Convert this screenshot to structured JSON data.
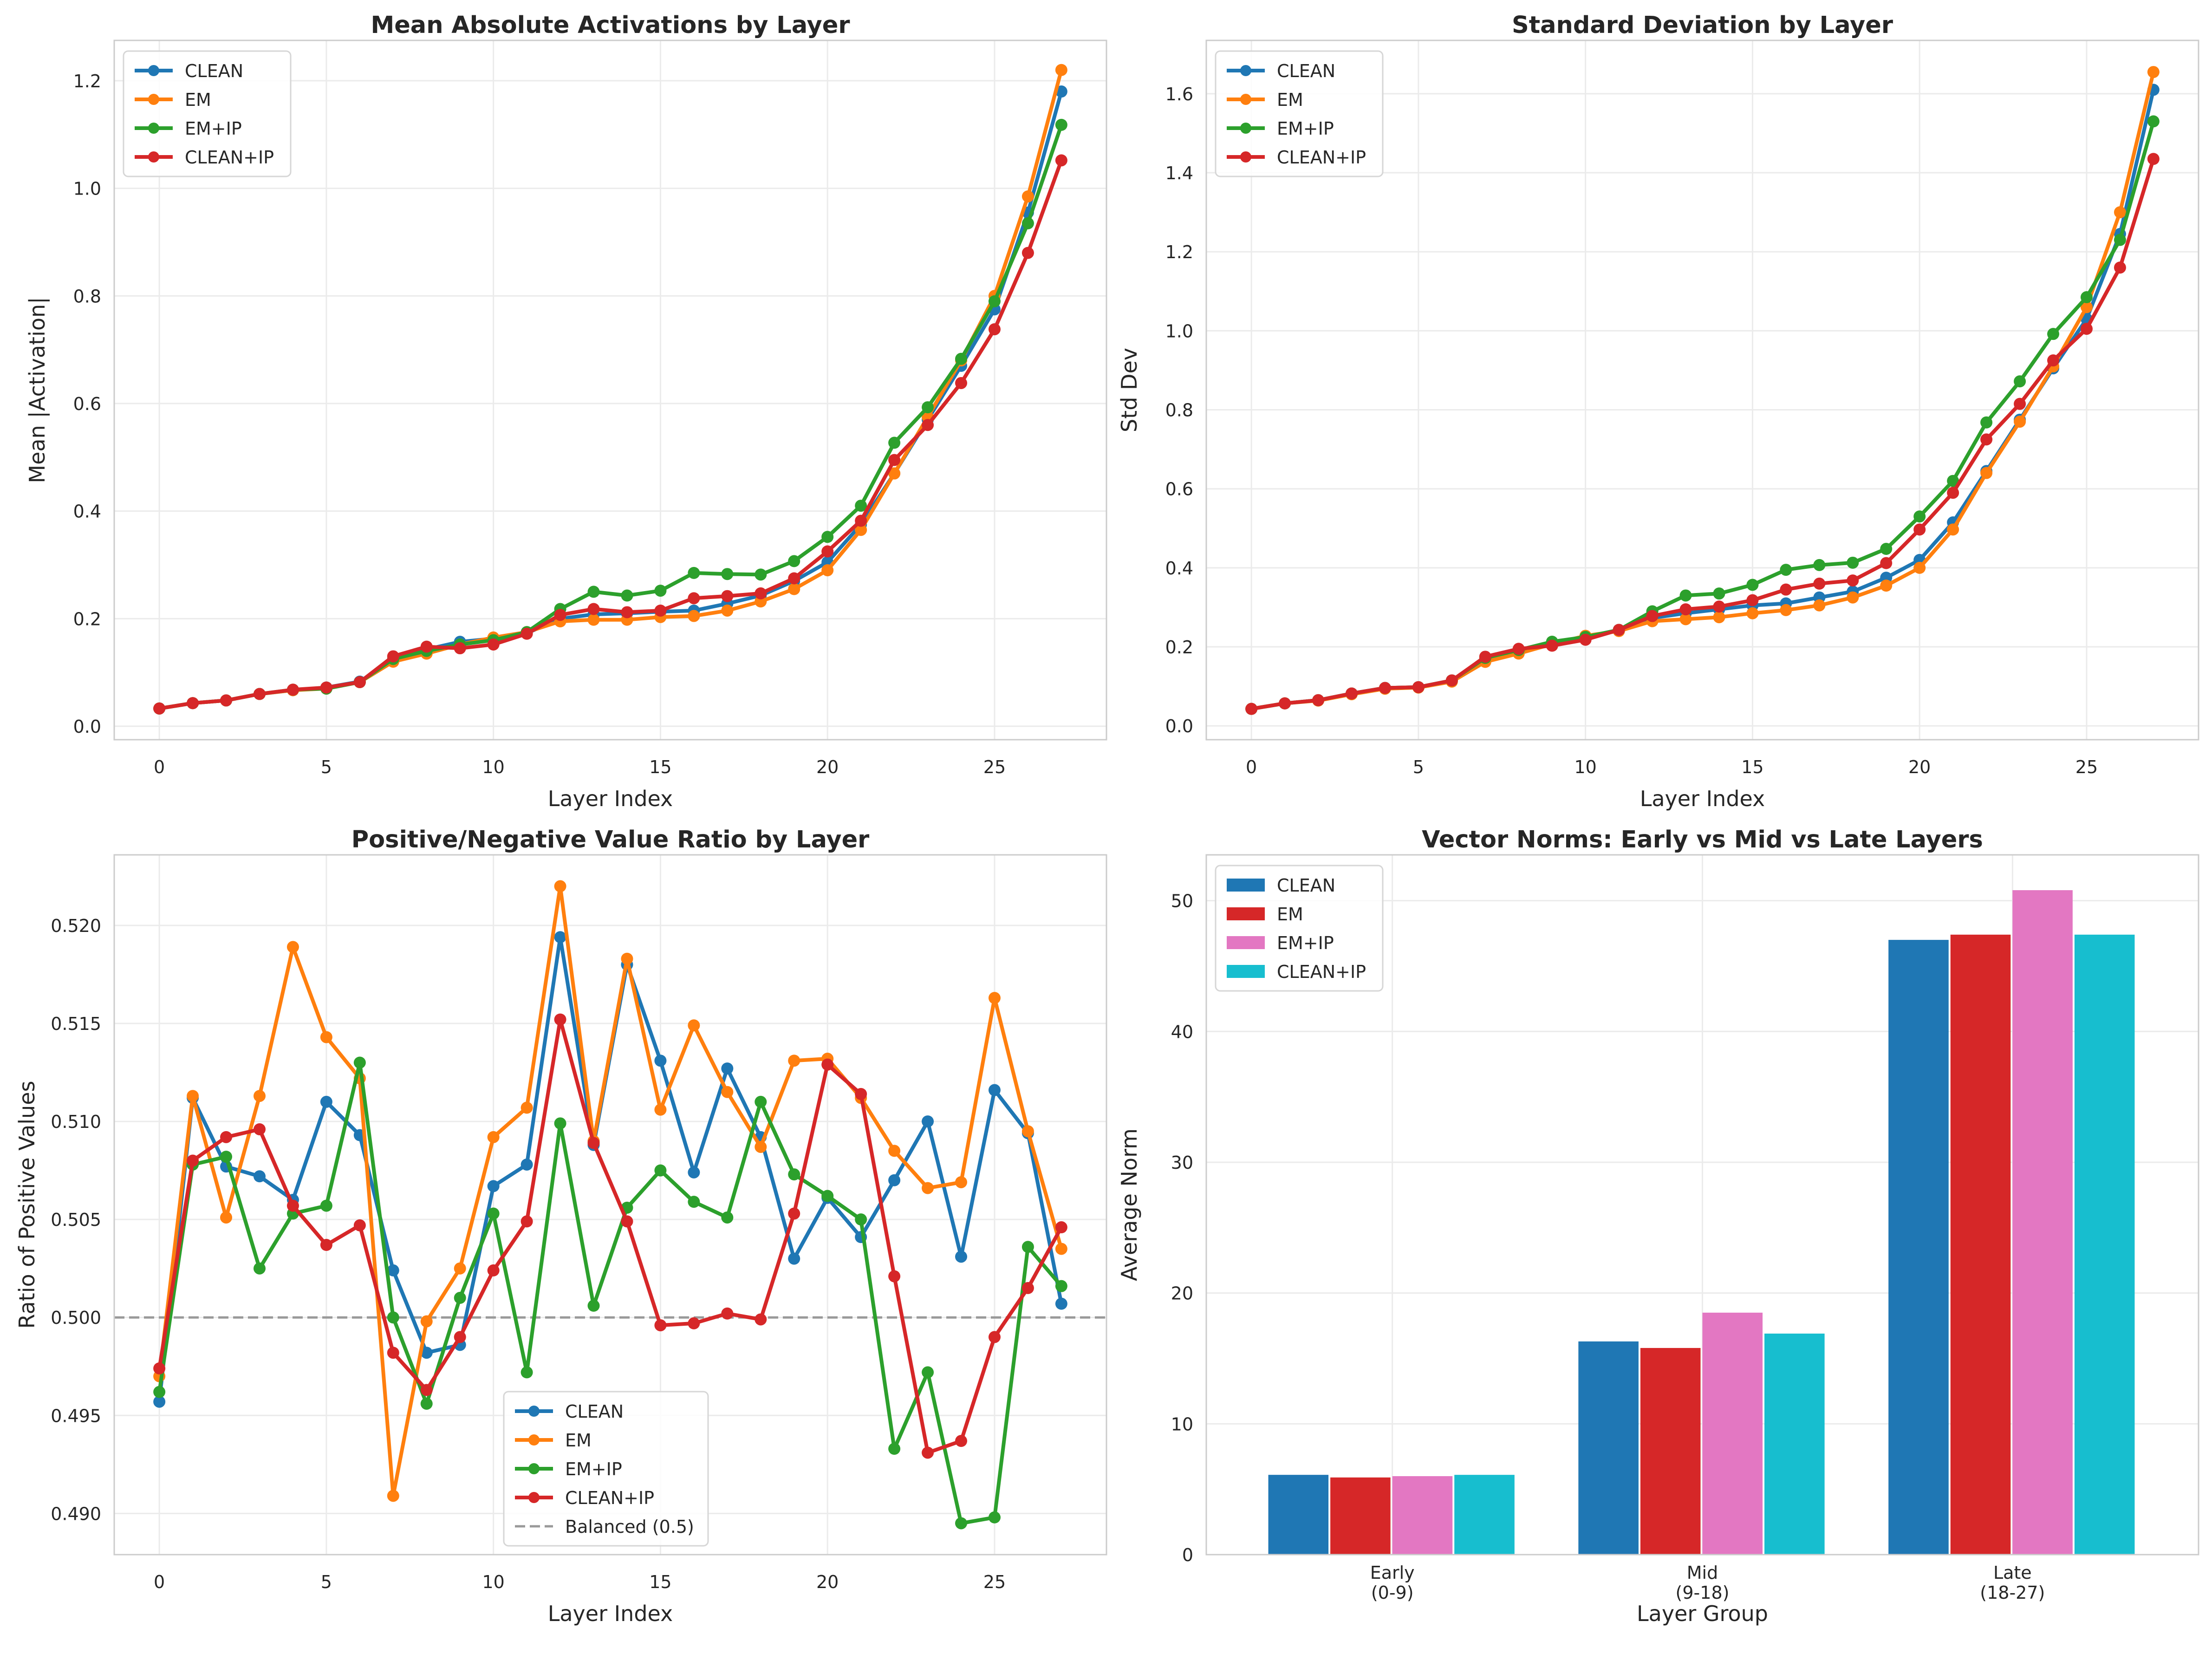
{
  "chart_data": [
    {
      "type": "line",
      "title": "Mean Absolute Activations by Layer",
      "xlabel": "Layer Index",
      "ylabel": "Mean |Activation|",
      "xlim": [
        -1.35,
        28.35
      ],
      "ylim": [
        -0.025,
        1.275
      ],
      "xticks": [
        0,
        5,
        10,
        15,
        20,
        25
      ],
      "yticks": [
        0.0,
        0.2,
        0.4,
        0.6,
        0.8,
        1.0,
        1.2
      ],
      "ytick_decimals": 1,
      "grid": true,
      "legend": "top-left",
      "x": [
        0,
        1,
        2,
        3,
        4,
        5,
        6,
        7,
        8,
        9,
        10,
        11,
        12,
        13,
        14,
        15,
        16,
        17,
        18,
        19,
        20,
        21,
        22,
        23,
        24,
        25,
        26,
        27
      ],
      "series": [
        {
          "name": "CLEAN",
          "color": "#1f77b4",
          "values": [
            0.033,
            0.043,
            0.048,
            0.06,
            0.067,
            0.072,
            0.083,
            0.125,
            0.143,
            0.157,
            0.163,
            0.173,
            0.2,
            0.208,
            0.21,
            0.213,
            0.215,
            0.228,
            0.243,
            0.27,
            0.305,
            0.375,
            0.47,
            0.57,
            0.67,
            0.775,
            0.955,
            1.18
          ]
        },
        {
          "name": "EM",
          "color": "#ff7f0e",
          "values": [
            0.033,
            0.043,
            0.048,
            0.06,
            0.067,
            0.07,
            0.082,
            0.12,
            0.135,
            0.152,
            0.165,
            0.175,
            0.195,
            0.198,
            0.198,
            0.203,
            0.205,
            0.215,
            0.232,
            0.255,
            0.29,
            0.365,
            0.47,
            0.575,
            0.68,
            0.8,
            0.985,
            1.22
          ]
        },
        {
          "name": "EM+IP",
          "color": "#2ca02c",
          "values": [
            0.033,
            0.043,
            0.048,
            0.06,
            0.068,
            0.07,
            0.082,
            0.125,
            0.14,
            0.152,
            0.16,
            0.175,
            0.218,
            0.25,
            0.243,
            0.252,
            0.285,
            0.283,
            0.282,
            0.307,
            0.352,
            0.41,
            0.527,
            0.593,
            0.683,
            0.79,
            0.935,
            1.118
          ]
        },
        {
          "name": "CLEAN+IP",
          "color": "#d62728",
          "values": [
            0.033,
            0.043,
            0.048,
            0.06,
            0.068,
            0.072,
            0.082,
            0.13,
            0.148,
            0.145,
            0.152,
            0.172,
            0.207,
            0.218,
            0.212,
            0.215,
            0.238,
            0.242,
            0.247,
            0.275,
            0.325,
            0.382,
            0.495,
            0.56,
            0.638,
            0.738,
            0.88,
            1.052
          ]
        }
      ]
    },
    {
      "type": "line",
      "title": "Standard Deviation by Layer",
      "xlabel": "Layer Index",
      "ylabel": "Std Dev",
      "xlim": [
        -1.35,
        28.35
      ],
      "ylim": [
        -0.035,
        1.735
      ],
      "xticks": [
        0,
        5,
        10,
        15,
        20,
        25
      ],
      "yticks": [
        0.0,
        0.2,
        0.4,
        0.6,
        0.8,
        1.0,
        1.2,
        1.4,
        1.6
      ],
      "ytick_decimals": 1,
      "grid": true,
      "legend": "top-left",
      "x": [
        0,
        1,
        2,
        3,
        4,
        5,
        6,
        7,
        8,
        9,
        10,
        11,
        12,
        13,
        14,
        15,
        16,
        17,
        18,
        19,
        20,
        21,
        22,
        23,
        24,
        25,
        26,
        27
      ],
      "series": [
        {
          "name": "CLEAN",
          "color": "#1f77b4",
          "values": [
            0.043,
            0.057,
            0.065,
            0.082,
            0.096,
            0.098,
            0.115,
            0.17,
            0.19,
            0.21,
            0.225,
            0.243,
            0.273,
            0.285,
            0.295,
            0.305,
            0.31,
            0.325,
            0.34,
            0.375,
            0.42,
            0.515,
            0.645,
            0.775,
            0.905,
            1.03,
            1.245,
            1.61
          ]
        },
        {
          "name": "EM",
          "color": "#ff7f0e",
          "values": [
            0.043,
            0.057,
            0.064,
            0.08,
            0.094,
            0.097,
            0.112,
            0.162,
            0.183,
            0.207,
            0.228,
            0.24,
            0.265,
            0.27,
            0.275,
            0.285,
            0.293,
            0.305,
            0.325,
            0.355,
            0.4,
            0.497,
            0.64,
            0.77,
            0.91,
            1.06,
            1.3,
            1.655
          ]
        },
        {
          "name": "EM+IP",
          "color": "#2ca02c",
          "values": [
            0.043,
            0.057,
            0.065,
            0.082,
            0.096,
            0.098,
            0.115,
            0.172,
            0.192,
            0.213,
            0.225,
            0.243,
            0.29,
            0.33,
            0.335,
            0.357,
            0.395,
            0.407,
            0.413,
            0.448,
            0.53,
            0.62,
            0.768,
            0.872,
            0.992,
            1.085,
            1.23,
            1.53
          ]
        },
        {
          "name": "CLEAN+IP",
          "color": "#d62728",
          "values": [
            0.043,
            0.057,
            0.065,
            0.082,
            0.096,
            0.098,
            0.115,
            0.175,
            0.195,
            0.203,
            0.218,
            0.243,
            0.278,
            0.295,
            0.302,
            0.318,
            0.345,
            0.36,
            0.368,
            0.412,
            0.497,
            0.59,
            0.725,
            0.815,
            0.925,
            1.005,
            1.16,
            1.435
          ]
        }
      ]
    },
    {
      "type": "line",
      "title": "Positive/Negative Value Ratio by Layer",
      "xlabel": "Layer Index",
      "ylabel": "Ratio of Positive Values",
      "xlim": [
        -1.35,
        28.35
      ],
      "ylim": [
        0.4879,
        0.5236
      ],
      "xticks": [
        0,
        5,
        10,
        15,
        20,
        25
      ],
      "yticks": [
        0.49,
        0.495,
        0.5,
        0.505,
        0.51,
        0.515,
        0.52
      ],
      "ytick_decimals": 3,
      "grid": true,
      "legend": "bottom-center",
      "reference_line": {
        "name": "Balanced (0.5)",
        "y": 0.5,
        "color": "#999999"
      },
      "x": [
        0,
        1,
        2,
        3,
        4,
        5,
        6,
        7,
        8,
        9,
        10,
        11,
        12,
        13,
        14,
        15,
        16,
        17,
        18,
        19,
        20,
        21,
        22,
        23,
        24,
        25,
        26,
        27
      ],
      "series": [
        {
          "name": "CLEAN",
          "color": "#1f77b4",
          "values": [
            0.4957,
            0.5112,
            0.5077,
            0.5072,
            0.506,
            0.511,
            0.5093,
            0.5024,
            0.4982,
            0.4986,
            0.5067,
            0.5078,
            0.5194,
            0.5088,
            0.518,
            0.5131,
            0.5074,
            0.5127,
            0.5092,
            0.503,
            0.5061,
            0.5041,
            0.507,
            0.51,
            0.5031,
            0.5116,
            0.5094,
            0.5007
          ]
        },
        {
          "name": "EM",
          "color": "#ff7f0e",
          "values": [
            0.497,
            0.5113,
            0.5051,
            0.5113,
            0.5189,
            0.5143,
            0.5122,
            0.4909,
            0.4998,
            0.5025,
            0.5092,
            0.5107,
            0.522,
            0.509,
            0.5183,
            0.5106,
            0.5149,
            0.5115,
            0.5087,
            0.5131,
            0.5132,
            0.5112,
            0.5085,
            0.5066,
            0.5069,
            0.5163,
            0.5095,
            0.5035
          ]
        },
        {
          "name": "EM+IP",
          "color": "#2ca02c",
          "values": [
            0.4962,
            0.5078,
            0.5082,
            0.5025,
            0.5053,
            0.5057,
            0.513,
            0.5,
            0.4956,
            0.501,
            0.5053,
            0.4972,
            0.5099,
            0.5006,
            0.5056,
            0.5075,
            0.5059,
            0.5051,
            0.511,
            0.5073,
            0.5062,
            0.505,
            0.4933,
            0.4972,
            0.4895,
            0.4898,
            0.5036,
            0.5016
          ]
        },
        {
          "name": "CLEAN+IP",
          "color": "#d62728",
          "values": [
            0.4974,
            0.508,
            0.5092,
            0.5096,
            0.5057,
            0.5037,
            0.5047,
            0.4982,
            0.4963,
            0.499,
            0.5024,
            0.5049,
            0.5152,
            0.5089,
            0.5049,
            0.4996,
            0.4997,
            0.5002,
            0.4999,
            0.5053,
            0.5129,
            0.5114,
            0.5021,
            0.4931,
            0.4937,
            0.499,
            0.5015,
            0.5046
          ]
        }
      ]
    },
    {
      "type": "bar",
      "title": "Vector Norms: Early vs Mid vs Late Layers",
      "xlabel": "Layer Group",
      "ylabel": "Average Norm",
      "ylim": [
        0,
        53.5
      ],
      "yticks": [
        0,
        10,
        20,
        30,
        40,
        50
      ],
      "ytick_decimals": 0,
      "grid": true,
      "legend": "top-left",
      "categories": [
        [
          "Early",
          "(0-9)"
        ],
        [
          "Mid",
          "(9-18)"
        ],
        [
          "Late",
          "(18-27)"
        ]
      ],
      "series": [
        {
          "name": "CLEAN",
          "color": "#1f77b4",
          "values": [
            6.1,
            16.3,
            47.0
          ]
        },
        {
          "name": "EM",
          "color": "#d62728",
          "values": [
            5.9,
            15.8,
            47.4
          ]
        },
        {
          "name": "EM+IP",
          "color": "#e377c2",
          "values": [
            6.0,
            18.5,
            50.8
          ]
        },
        {
          "name": "CLEAN+IP",
          "color": "#17becf",
          "values": [
            6.1,
            16.9,
            47.4
          ]
        }
      ]
    }
  ]
}
